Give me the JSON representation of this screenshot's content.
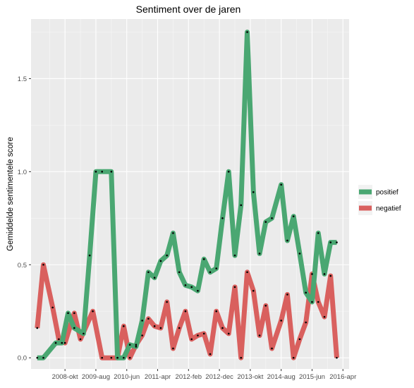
{
  "chart_data": {
    "type": "line",
    "title": "Sentiment over de jaren",
    "xlabel": "",
    "ylabel": "Gemiddelde sentimentele score",
    "x_ticks": [
      "2008-okt",
      "2009-aug",
      "2010-jun",
      "2011-apr",
      "2012-feb",
      "2012-dec",
      "2013-okt",
      "2014-aug",
      "2015-jun",
      "2016-apr"
    ],
    "y_ticks": [
      "0.0",
      "0.5",
      "1.0",
      "1.5"
    ],
    "ylim": [
      -0.06,
      1.82
    ],
    "xlim": [
      "2007-11",
      "2016-06"
    ],
    "grid": true,
    "legend_position": "right",
    "series": [
      {
        "name": "positief",
        "color": "#4aa772",
        "x": [
          "2008-01",
          "2008-03",
          "2008-07",
          "2008-09",
          "2008-11",
          "2009-01",
          "2009-04",
          "2009-06",
          "2009-08",
          "2009-10",
          "2010-01",
          "2010-03",
          "2010-05",
          "2010-07",
          "2010-09",
          "2010-11",
          "2011-01",
          "2011-03",
          "2011-05",
          "2011-07",
          "2011-09",
          "2011-11",
          "2012-01",
          "2012-03",
          "2012-05",
          "2012-07",
          "2012-09",
          "2012-11",
          "2013-01",
          "2013-03",
          "2013-05",
          "2013-07",
          "2013-09",
          "2013-11",
          "2014-01",
          "2014-03",
          "2014-05",
          "2014-08",
          "2014-10",
          "2014-12",
          "2015-02",
          "2015-04",
          "2015-06",
          "2015-08",
          "2015-10",
          "2015-12",
          "2016-02"
        ],
        "values": [
          0.0,
          0.0,
          0.08,
          0.08,
          0.24,
          0.16,
          0.13,
          0.55,
          1.0,
          1.0,
          1.0,
          0.0,
          0.0,
          0.07,
          0.06,
          0.2,
          0.46,
          0.43,
          0.52,
          0.55,
          0.67,
          0.46,
          0.39,
          0.38,
          0.36,
          0.53,
          0.46,
          0.48,
          0.75,
          1.0,
          0.55,
          0.82,
          1.75,
          0.89,
          0.56,
          0.73,
          0.75,
          0.93,
          0.63,
          0.76,
          0.56,
          0.35,
          0.3,
          0.67,
          0.45,
          0.62,
          0.62
        ]
      },
      {
        "name": "negatief",
        "color": "#d9605e",
        "x": [
          "2008-01",
          "2008-03",
          "2008-06",
          "2008-08",
          "2008-10",
          "2009-01",
          "2009-03",
          "2009-07",
          "2009-10",
          "2010-01",
          "2010-03",
          "2010-05",
          "2010-07",
          "2010-09",
          "2010-11",
          "2011-01",
          "2011-03",
          "2011-05",
          "2011-07",
          "2011-09",
          "2011-11",
          "2012-01",
          "2012-03",
          "2012-05",
          "2012-07",
          "2012-09",
          "2012-11",
          "2013-01",
          "2013-03",
          "2013-05",
          "2013-07",
          "2013-09",
          "2013-11",
          "2014-01",
          "2014-03",
          "2014-05",
          "2014-08",
          "2014-10",
          "2014-12",
          "2015-02",
          "2015-04",
          "2015-06",
          "2015-08",
          "2015-10",
          "2015-12",
          "2016-02"
        ],
        "values": [
          0.16,
          0.5,
          0.27,
          0.1,
          0.08,
          0.24,
          0.1,
          0.25,
          0.0,
          0.0,
          0.0,
          0.17,
          0.0,
          0.07,
          0.12,
          0.21,
          0.17,
          0.16,
          0.3,
          0.05,
          0.16,
          0.25,
          0.1,
          0.12,
          0.13,
          0.02,
          0.25,
          0.16,
          0.13,
          0.38,
          0.0,
          0.46,
          0.36,
          0.12,
          0.28,
          0.05,
          0.2,
          0.34,
          0.0,
          0.1,
          0.19,
          0.45,
          0.3,
          0.22,
          0.44,
          0.0
        ]
      }
    ]
  }
}
